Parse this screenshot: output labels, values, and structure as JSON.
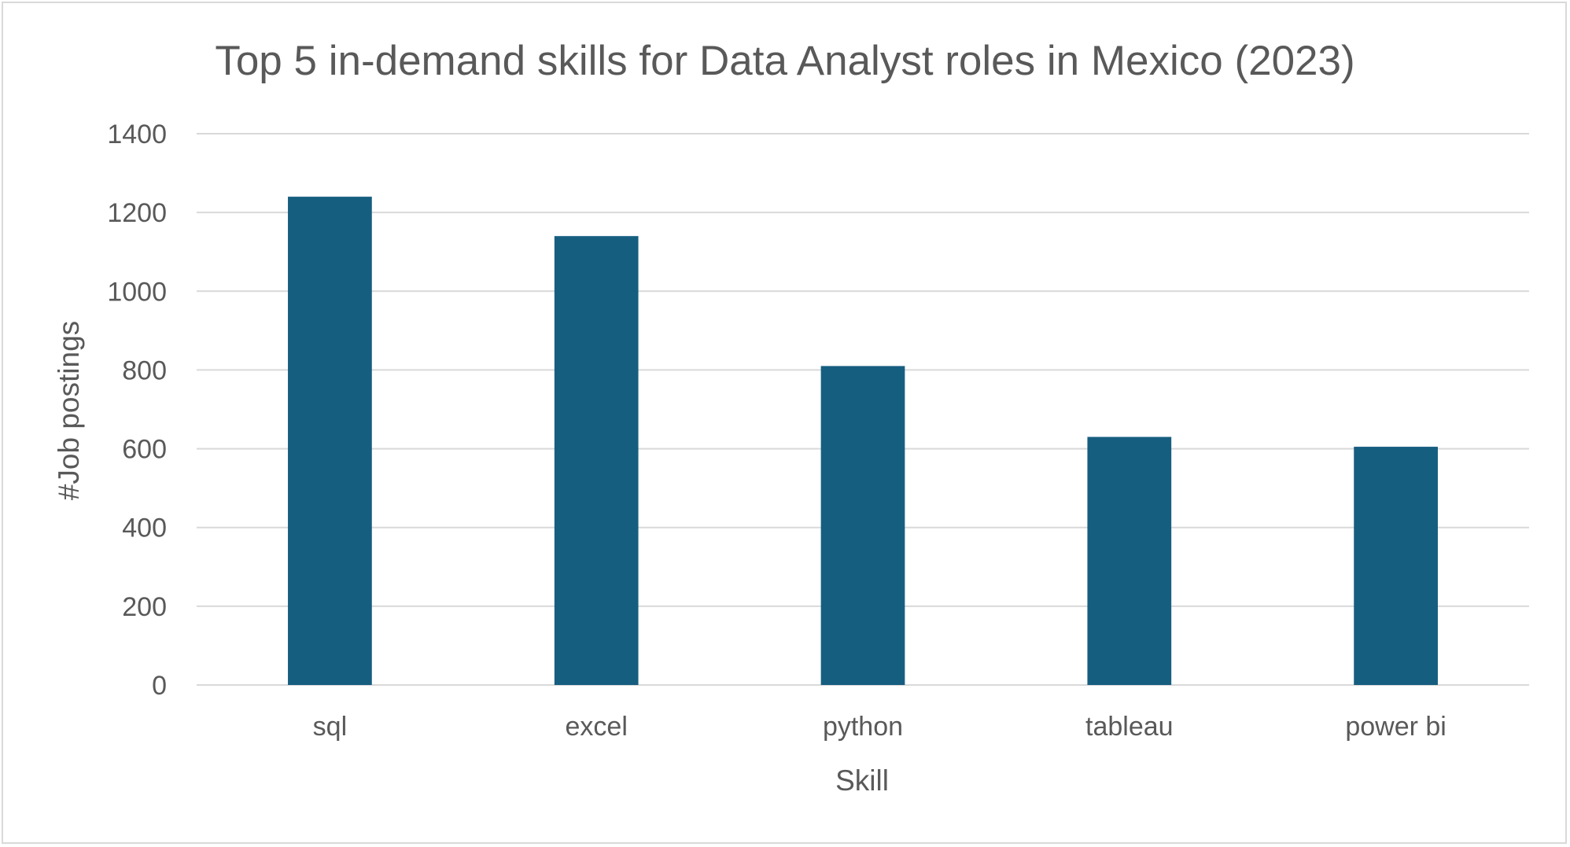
{
  "chart_data": {
    "type": "bar",
    "title": "Top 5 in-demand skills for Data Analyst roles in Mexico (2023)",
    "xlabel": "Skill",
    "ylabel": "#Job postings",
    "categories": [
      "sql",
      "excel",
      "python",
      "tableau",
      "power bi"
    ],
    "values": [
      1240,
      1140,
      810,
      630,
      605
    ],
    "ylim": [
      0,
      1400
    ],
    "yticks": [
      "0",
      "200",
      "400",
      "600",
      "800",
      "1000",
      "1200",
      "1400"
    ],
    "grid": true,
    "legend": "none",
    "bar_color": "#165e80"
  }
}
